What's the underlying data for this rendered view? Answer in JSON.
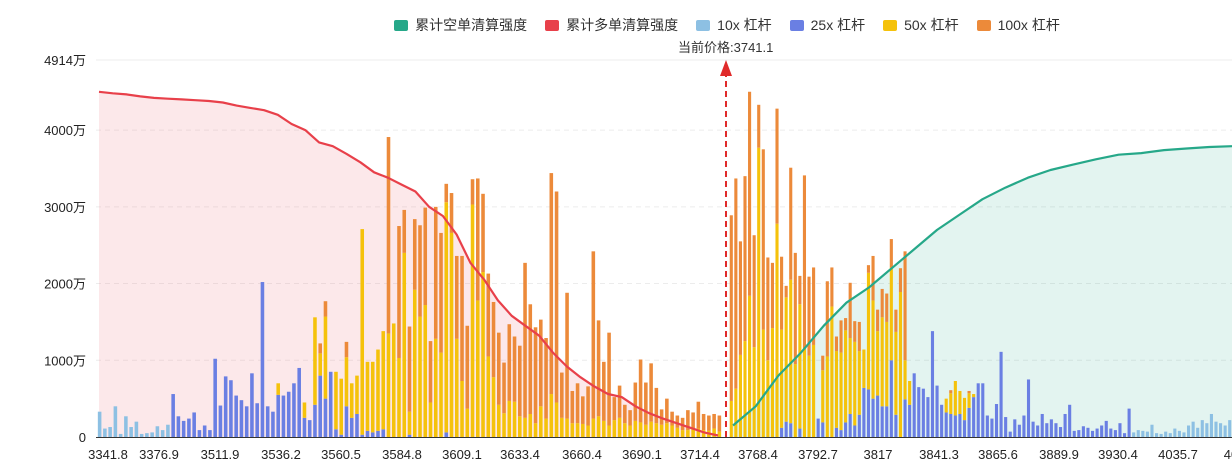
{
  "chart_data": {
    "type": "bar",
    "yticks": [
      "0",
      "1000万",
      "2000万",
      "3000万",
      "4000万",
      "4914万"
    ],
    "yvals": [
      0,
      1000,
      2000,
      3000,
      4000,
      4914
    ],
    "ylim": [
      0,
      4914
    ],
    "xtick_labels": [
      "3341.8",
      "3376.9",
      "3511.9",
      "3536.2",
      "3560.5",
      "3584.8",
      "3609.1",
      "3633.4",
      "3660.4",
      "3690.1",
      "3714.4",
      "3768.4",
      "3792.7",
      "3817",
      "3841.3",
      "3865.6",
      "3889.9",
      "3930.4",
      "4035.7",
      "40"
    ],
    "current_price": "当前价格:3741.1",
    "legend": [
      {
        "name": "累计空单清算强度",
        "color": "#26a889"
      },
      {
        "name": "累计多单清算强度",
        "color": "#e8404a"
      },
      {
        "name": "10x 杠杆",
        "color": "#8dc0e3"
      },
      {
        "name": "25x 杠杆",
        "color": "#6a7fe3"
      },
      {
        "name": "50x 杠杆",
        "color": "#f5c20b"
      },
      {
        "name": "100x 杠杆",
        "color": "#ec8a3a"
      }
    ],
    "bars_left": [
      [
        330,
        0,
        0,
        0
      ],
      [
        110,
        0,
        0,
        0
      ],
      [
        130,
        0,
        0,
        0
      ],
      [
        400,
        0,
        0,
        0
      ],
      [
        40,
        0,
        0,
        0
      ],
      [
        270,
        0,
        0,
        0
      ],
      [
        130,
        0,
        0,
        0
      ],
      [
        200,
        0,
        0,
        0
      ],
      [
        40,
        0,
        0,
        0
      ],
      [
        50,
        0,
        0,
        0
      ],
      [
        60,
        0,
        0,
        0
      ],
      [
        140,
        0,
        0,
        0
      ],
      [
        90,
        0,
        0,
        0
      ],
      [
        160,
        0,
        0,
        0
      ],
      [
        0,
        560,
        0,
        0
      ],
      [
        0,
        270,
        0,
        0
      ],
      [
        0,
        210,
        0,
        0
      ],
      [
        0,
        240,
        0,
        0
      ],
      [
        0,
        320,
        0,
        0
      ],
      [
        0,
        90,
        0,
        0
      ],
      [
        0,
        150,
        0,
        0
      ],
      [
        0,
        90,
        0,
        0
      ],
      [
        0,
        1020,
        0,
        0
      ],
      [
        0,
        410,
        0,
        0
      ],
      [
        0,
        790,
        0,
        0
      ],
      [
        0,
        740,
        0,
        0
      ],
      [
        0,
        540,
        0,
        0
      ],
      [
        0,
        480,
        0,
        0
      ],
      [
        0,
        400,
        0,
        0
      ],
      [
        0,
        830,
        0,
        0
      ],
      [
        0,
        440,
        0,
        0
      ],
      [
        0,
        2020,
        0,
        0
      ],
      [
        0,
        400,
        0,
        0
      ],
      [
        0,
        330,
        0,
        0
      ],
      [
        0,
        550,
        150,
        0
      ],
      [
        0,
        540,
        0,
        0
      ],
      [
        0,
        590,
        0,
        0
      ],
      [
        0,
        700,
        0,
        0
      ],
      [
        0,
        900,
        0,
        0
      ],
      [
        0,
        250,
        200,
        0
      ],
      [
        0,
        220,
        0,
        0
      ],
      [
        0,
        420,
        1140,
        0
      ],
      [
        0,
        800,
        290,
        130
      ],
      [
        0,
        500,
        1070,
        200
      ],
      [
        0,
        850,
        0,
        0
      ],
      [
        0,
        100,
        750,
        0
      ],
      [
        0,
        30,
        730,
        0
      ],
      [
        0,
        400,
        640,
        200
      ],
      [
        0,
        250,
        450,
        0
      ],
      [
        0,
        300,
        500,
        0
      ],
      [
        0,
        30,
        2680,
        0
      ],
      [
        0,
        80,
        900,
        0
      ],
      [
        0,
        60,
        920,
        0
      ],
      [
        0,
        80,
        1060,
        0
      ],
      [
        0,
        100,
        1280,
        0
      ],
      [
        0,
        0,
        1350,
        2560
      ],
      [
        0,
        0,
        1480,
        0
      ],
      [
        0,
        0,
        1030,
        1720
      ],
      [
        0,
        0,
        2400,
        560
      ],
      [
        0,
        30,
        300,
        1110
      ],
      [
        0,
        0,
        1920,
        920
      ],
      [
        0,
        0,
        1570,
        1190
      ],
      [
        0,
        0,
        1720,
        1270
      ],
      [
        0,
        0,
        450,
        800
      ],
      [
        0,
        0,
        1280,
        1720
      ],
      [
        0,
        0,
        1100,
        1560
      ],
      [
        0,
        60,
        3000,
        240
      ],
      [
        0,
        0,
        2660,
        520
      ],
      [
        0,
        0,
        1280,
        1080
      ],
      [
        0,
        0,
        730,
        1630
      ],
      [
        0,
        0,
        370,
        1080
      ],
      [
        0,
        0,
        3030,
        330
      ],
      [
        0,
        0,
        1780,
        1590
      ],
      [
        0,
        0,
        2150,
        1020
      ],
      [
        0,
        0,
        1050,
        1080
      ],
      [
        0,
        0,
        780,
        980
      ],
      [
        0,
        0,
        420,
        940
      ],
      [
        0,
        0,
        310,
        660
      ],
      [
        0,
        0,
        470,
        1000
      ],
      [
        0,
        0,
        460,
        850
      ],
      [
        0,
        0,
        270,
        920
      ],
      [
        0,
        0,
        250,
        2020
      ],
      [
        0,
        0,
        300,
        1430
      ],
      [
        0,
        0,
        180,
        1250
      ],
      [
        0,
        0,
        400,
        1130
      ],
      [
        0,
        0,
        240,
        1050
      ],
      [
        0,
        0,
        560,
        2880
      ],
      [
        0,
        0,
        450,
        2750
      ],
      [
        0,
        0,
        250,
        590
      ],
      [
        0,
        0,
        240,
        1640
      ],
      [
        0,
        0,
        180,
        420
      ],
      [
        0,
        0,
        180,
        520
      ],
      [
        0,
        0,
        170,
        360
      ],
      [
        0,
        0,
        150,
        510
      ],
      [
        0,
        0,
        240,
        2180
      ],
      [
        0,
        0,
        270,
        1250
      ],
      [
        0,
        0,
        210,
        770
      ],
      [
        0,
        0,
        150,
        1210
      ],
      [
        0,
        0,
        220,
        300
      ],
      [
        0,
        0,
        250,
        420
      ],
      [
        0,
        0,
        180,
        240
      ],
      [
        0,
        0,
        150,
        200
      ],
      [
        0,
        0,
        210,
        500
      ],
      [
        0,
        0,
        190,
        820
      ],
      [
        0,
        0,
        160,
        550
      ],
      [
        0,
        0,
        200,
        760
      ],
      [
        0,
        0,
        180,
        460
      ],
      [
        0,
        0,
        160,
        200
      ],
      [
        0,
        0,
        180,
        320
      ],
      [
        0,
        0,
        150,
        180
      ],
      [
        0,
        0,
        120,
        160
      ],
      [
        0,
        0,
        90,
        160
      ],
      [
        0,
        0,
        90,
        260
      ],
      [
        0,
        0,
        110,
        210
      ],
      [
        0,
        0,
        110,
        350
      ],
      [
        0,
        0,
        90,
        210
      ],
      [
        0,
        0,
        80,
        200
      ],
      [
        0,
        0,
        110,
        190
      ],
      [
        0,
        0,
        70,
        210
      ]
    ],
    "bars_right": [
      [
        0,
        0,
        470,
        2420
      ],
      [
        0,
        0,
        630,
        2740
      ],
      [
        0,
        0,
        1070,
        1480
      ],
      [
        0,
        0,
        1250,
        2150
      ],
      [
        0,
        0,
        1840,
        2660
      ],
      [
        0,
        0,
        1170,
        1460
      ],
      [
        0,
        0,
        3770,
        560
      ],
      [
        0,
        0,
        1400,
        2350
      ],
      [
        0,
        0,
        1000,
        1340
      ],
      [
        0,
        0,
        1420,
        850
      ],
      [
        0,
        0,
        2780,
        1500
      ],
      [
        0,
        120,
        1280,
        950
      ],
      [
        0,
        200,
        1620,
        150
      ],
      [
        0,
        180,
        1870,
        1460
      ],
      [
        0,
        0,
        950,
        1450
      ],
      [
        0,
        110,
        1620,
        370
      ],
      [
        0,
        0,
        1160,
        2250
      ],
      [
        0,
        0,
        1060,
        1030
      ],
      [
        0,
        0,
        1200,
        1010
      ],
      [
        0,
        240,
        0,
        0
      ],
      [
        0,
        190,
        680,
        190
      ],
      [
        0,
        0,
        1050,
        980
      ],
      [
        0,
        0,
        1700,
        510
      ],
      [
        0,
        120,
        1000,
        190
      ],
      [
        0,
        90,
        1010,
        420
      ],
      [
        0,
        190,
        1200,
        160
      ],
      [
        0,
        300,
        990,
        720
      ],
      [
        0,
        150,
        1090,
        270
      ],
      [
        0,
        290,
        830,
        380
      ],
      [
        0,
        640,
        500,
        0
      ],
      [
        0,
        620,
        1520,
        100
      ],
      [
        0,
        500,
        1280,
        580
      ],
      [
        0,
        540,
        840,
        280
      ],
      [
        0,
        400,
        1160,
        370
      ],
      [
        0,
        400,
        1100,
        370
      ],
      [
        0,
        1000,
        1210,
        370
      ],
      [
        0,
        290,
        1080,
        290
      ],
      [
        0,
        0,
        1890,
        310
      ],
      [
        0,
        490,
        510,
        1420
      ],
      [
        0,
        420,
        310,
        0
      ],
      [
        0,
        830,
        0,
        0
      ],
      [
        0,
        650,
        0,
        0
      ],
      [
        0,
        630,
        0,
        0
      ],
      [
        0,
        520,
        0,
        0
      ],
      [
        0,
        1380,
        0,
        0
      ],
      [
        0,
        670,
        0,
        0
      ],
      [
        0,
        420,
        0,
        0
      ],
      [
        0,
        320,
        180,
        0
      ],
      [
        0,
        300,
        270,
        40
      ],
      [
        0,
        280,
        450,
        0
      ],
      [
        0,
        300,
        300,
        0
      ],
      [
        0,
        220,
        290,
        0
      ],
      [
        0,
        380,
        190,
        30
      ],
      [
        0,
        520,
        40,
        0
      ],
      [
        0,
        700,
        0,
        0
      ],
      [
        0,
        700,
        0,
        0
      ],
      [
        0,
        280,
        0,
        0
      ],
      [
        0,
        240,
        0,
        0
      ],
      [
        0,
        430,
        0,
        0
      ],
      [
        0,
        1110,
        0,
        0
      ],
      [
        0,
        260,
        0,
        0
      ],
      [
        0,
        70,
        0,
        0
      ],
      [
        0,
        230,
        0,
        0
      ],
      [
        0,
        160,
        0,
        0
      ],
      [
        0,
        280,
        0,
        0
      ],
      [
        0,
        750,
        0,
        0
      ],
      [
        0,
        200,
        0,
        0
      ],
      [
        0,
        150,
        0,
        0
      ],
      [
        0,
        300,
        0,
        0
      ],
      [
        0,
        180,
        0,
        0
      ],
      [
        0,
        230,
        0,
        0
      ],
      [
        0,
        180,
        0,
        0
      ],
      [
        0,
        130,
        0,
        0
      ],
      [
        0,
        300,
        0,
        0
      ],
      [
        0,
        420,
        0,
        0
      ],
      [
        0,
        80,
        0,
        0
      ],
      [
        0,
        90,
        0,
        0
      ],
      [
        0,
        140,
        0,
        0
      ],
      [
        0,
        120,
        0,
        0
      ],
      [
        0,
        80,
        0,
        0
      ],
      [
        0,
        110,
        0,
        0
      ],
      [
        0,
        150,
        0,
        0
      ],
      [
        0,
        210,
        0,
        0
      ],
      [
        0,
        110,
        0,
        0
      ],
      [
        0,
        90,
        0,
        0
      ],
      [
        0,
        180,
        0,
        0
      ],
      [
        0,
        50,
        0,
        0
      ],
      [
        0,
        370,
        0,
        0
      ],
      [
        60,
        0,
        0,
        0
      ],
      [
        90,
        0,
        0,
        0
      ],
      [
        80,
        0,
        0,
        0
      ],
      [
        70,
        0,
        0,
        0
      ],
      [
        160,
        0,
        0,
        0
      ],
      [
        50,
        0,
        0,
        0
      ],
      [
        40,
        0,
        0,
        0
      ],
      [
        70,
        0,
        0,
        0
      ],
      [
        50,
        0,
        0,
        0
      ],
      [
        110,
        0,
        0,
        0
      ],
      [
        80,
        0,
        0,
        0
      ],
      [
        60,
        0,
        0,
        0
      ],
      [
        150,
        0,
        0,
        0
      ],
      [
        200,
        0,
        0,
        0
      ],
      [
        120,
        0,
        0,
        0
      ],
      [
        220,
        0,
        0,
        0
      ],
      [
        180,
        0,
        0,
        0
      ],
      [
        300,
        0,
        0,
        0
      ],
      [
        200,
        0,
        0,
        0
      ],
      [
        180,
        0,
        0,
        0
      ],
      [
        150,
        0,
        0,
        0
      ],
      [
        220,
        0,
        0,
        0
      ]
    ],
    "long_cumulative": [
      4500,
      4480,
      4465,
      4440,
      4420,
      4410,
      4400,
      4390,
      4380,
      4360,
      4320,
      4290,
      4260,
      4200,
      4080,
      4000,
      3840,
      3790,
      3690,
      3580,
      3450,
      3380,
      3290,
      3200,
      3000,
      2880,
      2640,
      2270,
      2050,
      1780,
      1580,
      1450,
      1320,
      1100,
      920,
      780,
      660,
      560,
      520,
      400,
      310,
      240,
      180,
      120,
      60,
      20
    ],
    "short_cumulative": [
      150,
      400,
      800,
      1100,
      1450,
      1750,
      1950,
      2200,
      2450,
      2700,
      2900,
      3100,
      3250,
      3380,
      3480,
      3550,
      3620,
      3680,
      3700,
      3740,
      3760,
      3780,
      3790
    ]
  }
}
